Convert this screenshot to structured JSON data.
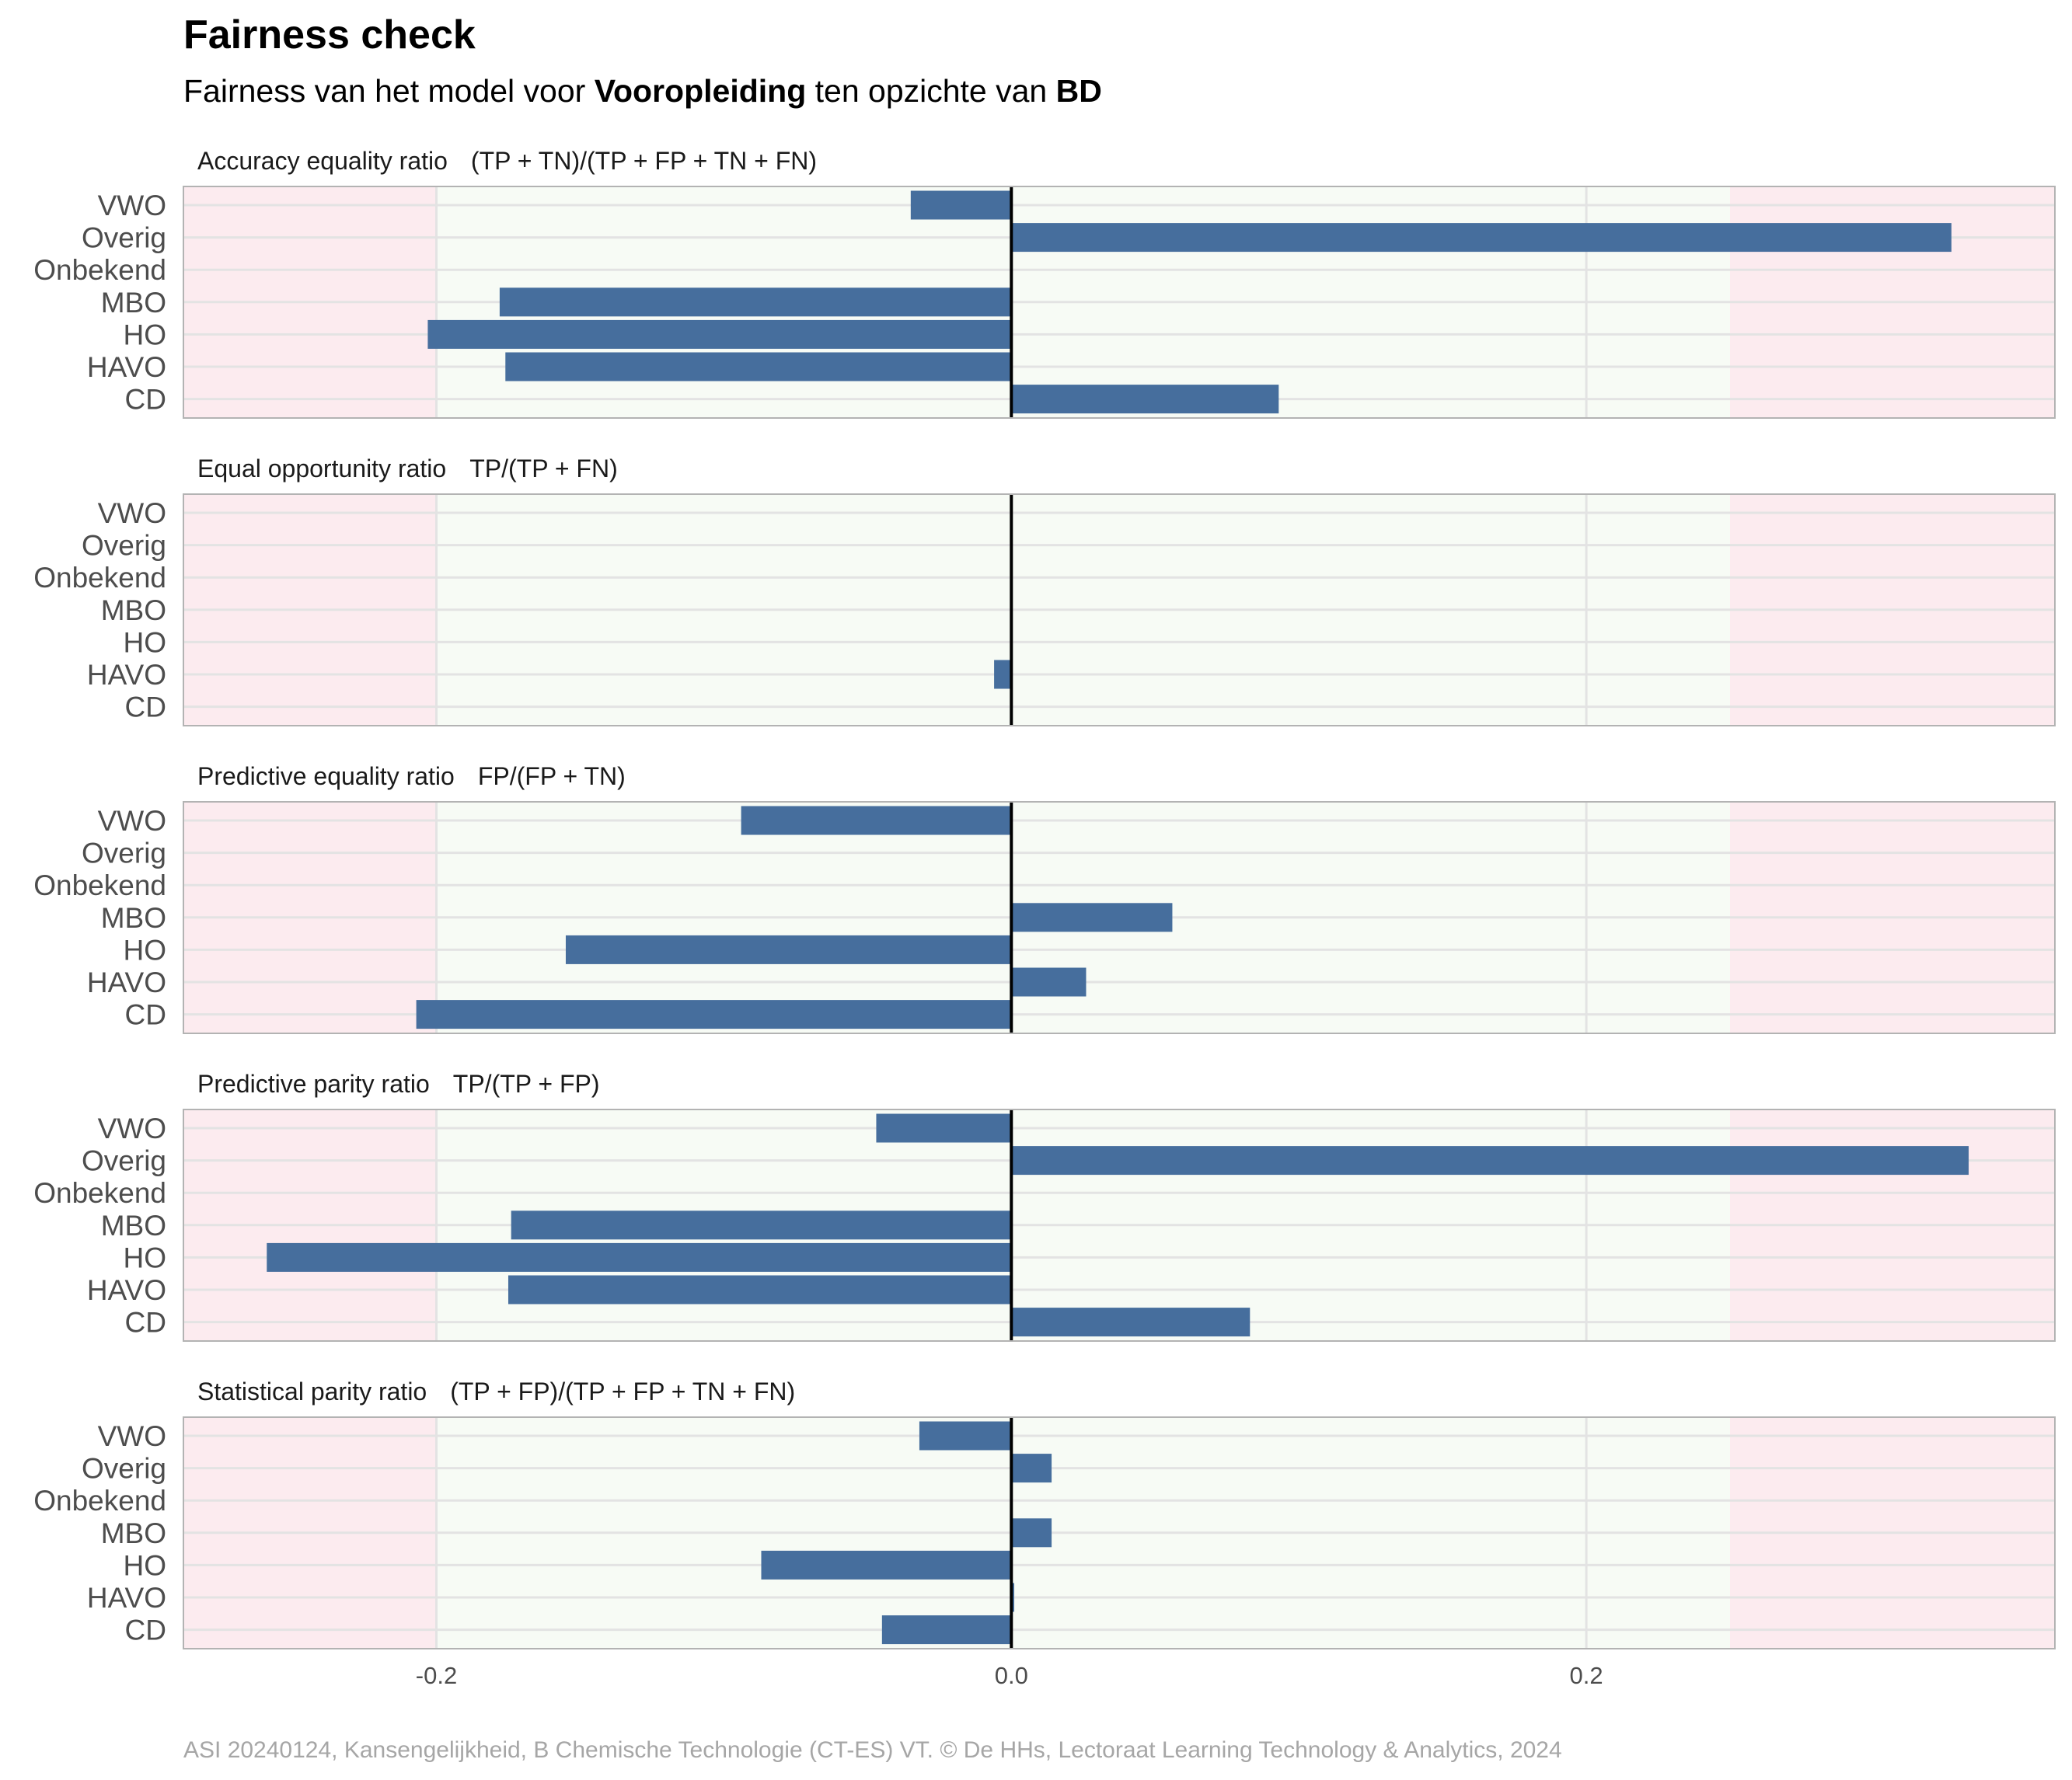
{
  "header": {
    "title": "Fairness check",
    "subtitle_parts": [
      {
        "text": "Fairness van het model voor ",
        "bold": false
      },
      {
        "text": "Vooropleiding",
        "bold": true
      },
      {
        "text": " ten opzichte van ",
        "bold": false
      },
      {
        "text": "BD",
        "bold": true
      }
    ]
  },
  "caption": "ASI 20240124, Kansengelijkheid, B Chemische Technologie (CT-ES) VT. © De HHs, Lectoraat Learning Technology & Analytics, 2024",
  "colors": {
    "bar": "#466e9d",
    "fair_zone": "#f7fbf5",
    "unfair_zone": "#fcebef",
    "zero_line": "#000000",
    "grid": "#e3e3e3",
    "border": "#b3b3b3"
  },
  "chart_data": {
    "type": "bar",
    "orientation": "horizontal",
    "categories": [
      "VWO",
      "Overig",
      "Onbekend",
      "MBO",
      "HO",
      "HAVO",
      "CD"
    ],
    "xlim": [
      -0.288,
      0.363
    ],
    "fair_range": [
      -0.2,
      0.25
    ],
    "x_ticks": [
      {
        "value": -0.2,
        "label": "-0.2"
      },
      {
        "value": 0.0,
        "label": "0.0"
      },
      {
        "value": 0.2,
        "label": "0.2"
      }
    ],
    "panels": [
      {
        "name": "Accuracy equality ratio",
        "formula": "(TP + TN)/(TP + FP + TN + FN)",
        "values": [
          -0.035,
          0.327,
          null,
          -0.178,
          -0.203,
          -0.176,
          0.093
        ]
      },
      {
        "name": "Equal opportunity ratio",
        "formula": "TP/(TP + FN)",
        "values": [
          null,
          null,
          null,
          null,
          null,
          -0.006,
          null
        ]
      },
      {
        "name": "Predictive equality ratio",
        "formula": "FP/(FP + TN)",
        "values": [
          -0.094,
          null,
          null,
          0.056,
          -0.155,
          0.026,
          -0.207
        ]
      },
      {
        "name": "Predictive parity ratio",
        "formula": "TP/(TP + FP)",
        "values": [
          -0.047,
          0.333,
          null,
          -0.174,
          -0.259,
          -0.175,
          0.083
        ]
      },
      {
        "name": "Statistical parity ratio",
        "formula": "(TP + FP)/(TP + FP + TN + FN)",
        "values": [
          -0.032,
          0.014,
          null,
          0.014,
          -0.087,
          0.001,
          -0.045
        ]
      }
    ]
  }
}
